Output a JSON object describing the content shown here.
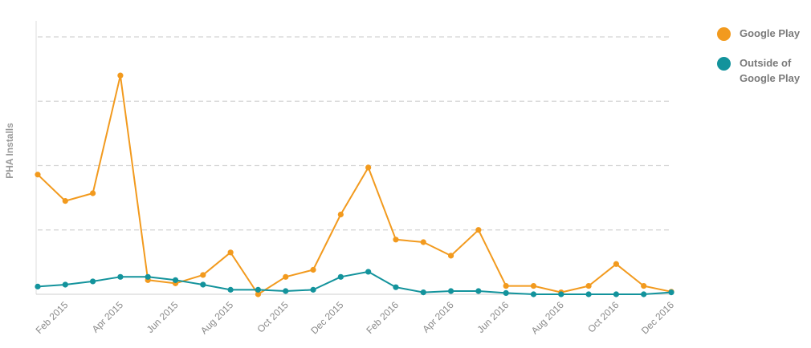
{
  "chart_data": {
    "type": "line",
    "title": "",
    "ylabel": "PHA Installs",
    "xlabel": "",
    "y_tick_labels_shown": false,
    "grid": "horizontal dashed",
    "legend_position": "right",
    "x": [
      "Jan 2015",
      "Feb 2015",
      "Mar 2015",
      "Apr 2015",
      "May 2015",
      "Jun 2015",
      "Jul 2015",
      "Aug 2015",
      "Sep 2015",
      "Oct 2015",
      "Nov 2015",
      "Dec 2015",
      "Jan 2016",
      "Feb 2016",
      "Mar 2016",
      "Apr 2016",
      "May 2016",
      "Jun 2016",
      "Jul 2016",
      "Aug 2016",
      "Sep 2016",
      "Oct 2016",
      "Nov 2016",
      "Dec 2016"
    ],
    "x_tick_labels": [
      "Feb 2015",
      "Apr 2015",
      "Jun 2015",
      "Aug 2015",
      "Oct 2015",
      "Dec 2015",
      "Feb 2016",
      "Apr 2016",
      "Jun 2016",
      "Aug 2016",
      "Oct 2016",
      "Dec 2016"
    ],
    "ylim": [
      0,
      4
    ],
    "series": [
      {
        "name": "Google Play",
        "color": "#F29A1E",
        "values": [
          1.86,
          1.45,
          1.57,
          3.4,
          0.22,
          0.17,
          0.3,
          0.65,
          0.0,
          0.27,
          0.38,
          1.24,
          1.97,
          0.85,
          0.81,
          0.6,
          1.0,
          0.13,
          0.13,
          0.03,
          0.13,
          0.47,
          0.13,
          0.04
        ]
      },
      {
        "name": "Outside of Google Play",
        "color": "#13939C",
        "values": [
          0.12,
          0.15,
          0.2,
          0.27,
          0.27,
          0.22,
          0.15,
          0.07,
          0.07,
          0.05,
          0.07,
          0.27,
          0.35,
          0.11,
          0.03,
          0.05,
          0.05,
          0.02,
          0.0,
          0.0,
          0.0,
          0.0,
          0.0,
          0.03
        ]
      }
    ]
  },
  "legend": [
    {
      "label": "Google Play",
      "color": "#F29A1E"
    },
    {
      "label": "Outside of Google Play",
      "color": "#13939C"
    }
  ]
}
